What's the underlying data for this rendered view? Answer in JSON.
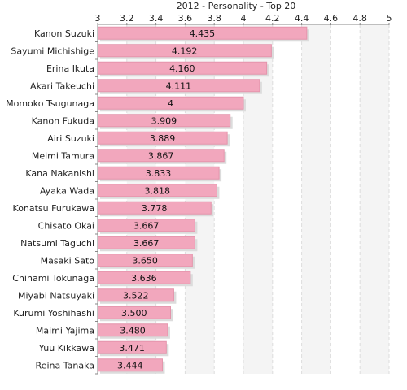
{
  "chart_data": {
    "type": "bar",
    "orientation": "horizontal",
    "title": "2012 - Personality - Top 20",
    "xlim": [
      3,
      5
    ],
    "xticks": [
      "3",
      "3.2",
      "3.4",
      "3.6",
      "3.8",
      "4",
      "4.2",
      "4.4",
      "4.6",
      "4.8",
      "5"
    ],
    "grid": true,
    "categories": [
      "Kanon Suzuki",
      "Sayumi Michishige",
      "Erina Ikuta",
      "Akari Takeuchi",
      "Momoko Tsugunaga",
      "Kanon Fukuda",
      "Airi Suzuki",
      "Meimi Tamura",
      "Kana Nakanishi",
      "Ayaka Wada",
      "Konatsu Furukawa",
      "Chisato Okai",
      "Natsumi Taguchi",
      "Masaki Sato",
      "Chinami Tokunaga",
      "Miyabi Natsuyaki",
      "Kurumi Yoshihashi",
      "Maimi Yajima",
      "Yuu Kikkawa",
      "Reina Tanaka"
    ],
    "values": [
      4.435,
      4.192,
      4.16,
      4.111,
      4,
      3.909,
      3.889,
      3.867,
      3.833,
      3.818,
      3.778,
      3.667,
      3.667,
      3.65,
      3.636,
      3.522,
      3.5,
      3.48,
      3.471,
      3.444
    ],
    "value_labels": [
      "4.435",
      "4.192",
      "4.160",
      "4.111",
      "4",
      "3.909",
      "3.889",
      "3.867",
      "3.833",
      "3.818",
      "3.778",
      "3.667",
      "3.667",
      "3.650",
      "3.636",
      "3.522",
      "3.500",
      "3.480",
      "3.471",
      "3.444"
    ],
    "colors": {
      "bar_fill": "#f2a7bd",
      "bar_stroke": "#e494ab",
      "bar_shadow": "#dcdcdc",
      "grid": "#dddddd",
      "band": "#f4f4f4",
      "axis": "#888888"
    }
  }
}
